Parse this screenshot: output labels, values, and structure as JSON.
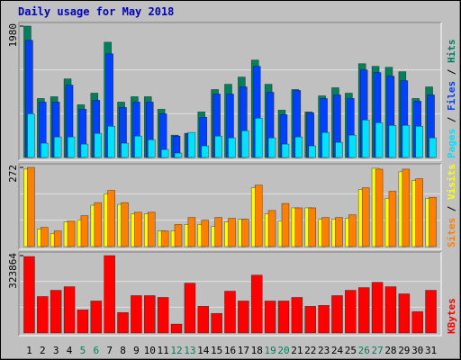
{
  "chart_data": [
    {
      "type": "bar",
      "title": "Daily usage for May 2018",
      "ylim": [
        0,
        1980
      ],
      "yticks": [
        1980
      ],
      "grid": true,
      "legend_position": "right",
      "legend_separator": " / ",
      "series": [
        {
          "name": "Hits",
          "color": "#00805c",
          "values": [
            1980,
            889,
            916,
            1185,
            795,
            970,
            1738,
            835,
            916,
            916,
            727,
            337,
            364,
            687,
            1024,
            1104,
            1212,
            1468,
            1104,
            714,
            1024,
            687,
            929,
            1051,
            970,
            1414,
            1374,
            1360,
            1293,
            889,
            1064
          ]
        },
        {
          "name": "Files",
          "color": "#0040ff",
          "values": [
            1765,
            835,
            835,
            1091,
            727,
            862,
            1562,
            754,
            835,
            835,
            660,
            323,
            364,
            606,
            956,
            956,
            1064,
            1374,
            983,
            647,
            1010,
            674,
            889,
            943,
            889,
            1320,
            1280,
            1226,
            1158,
            849,
            943
          ]
        },
        {
          "name": "Pages",
          "color": "#00e0ff",
          "values": [
            660,
            216,
            310,
            310,
            202,
            364,
            471,
            216,
            323,
            269,
            121,
            67,
            377,
            175,
            323,
            296,
            404,
            593,
            296,
            202,
            310,
            175,
            377,
            229,
            337,
            566,
            525,
            485,
            485,
            471,
            296
          ]
        }
      ]
    },
    {
      "type": "bar",
      "ylim": [
        0,
        272
      ],
      "yticks": [
        272
      ],
      "grid": true,
      "legend_position": "right",
      "legend_separator": " / ",
      "series": [
        {
          "name": "Visits",
          "color": "#ffff00",
          "values": [
            266,
            60,
            45,
            85,
            91,
            142,
            181,
            145,
            112,
            112,
            54,
            54,
            76,
            76,
            69,
            85,
            94,
            202,
            112,
            88,
            133,
            133,
            94,
            94,
            97,
            196,
            269,
            166,
            257,
            227,
            166
          ]
        },
        {
          "name": "Sites",
          "color": "#ff8000",
          "values": [
            272,
            66,
            54,
            88,
            106,
            151,
            193,
            151,
            118,
            118,
            54,
            76,
            100,
            91,
            100,
            97,
            94,
            211,
            124,
            148,
            133,
            133,
            100,
            100,
            109,
            202,
            266,
            190,
            266,
            233,
            169
          ]
        }
      ]
    },
    {
      "type": "bar",
      "ylim": [
        0,
        323864
      ],
      "yticks": [
        323864
      ],
      "grid": true,
      "legend_position": "right",
      "categories": [
        "1",
        "2",
        "3",
        "4",
        "5",
        "6",
        "7",
        "8",
        "9",
        "10",
        "11",
        "12",
        "13",
        "14",
        "15",
        "16",
        "17",
        "18",
        "19",
        "20",
        "21",
        "22",
        "23",
        "24",
        "25",
        "26",
        "27",
        "28",
        "29",
        "30",
        "31"
      ],
      "category_colors": [
        "#000000",
        "#000000",
        "#000000",
        "#000000",
        "#00805c",
        "#00805c",
        "#000000",
        "#000000",
        "#000000",
        "#000000",
        "#000000",
        "#00805c",
        "#00805c",
        "#000000",
        "#000000",
        "#000000",
        "#000000",
        "#000000",
        "#00805c",
        "#00805c",
        "#000000",
        "#000000",
        "#000000",
        "#000000",
        "#000000",
        "#00805c",
        "#00805c",
        "#000000",
        "#000000",
        "#000000",
        "#000000"
      ],
      "series": [
        {
          "name": "KBytes",
          "color": "#ff0000",
          "values": [
            320000,
            152600,
            178700,
            193600,
            96800,
            134000,
            323864,
            85600,
            156400,
            156400,
            148900,
            37200,
            208500,
            111700,
            81900,
            175000,
            134000,
            242000,
            134000,
            134000,
            148900,
            111700,
            115400,
            156400,
            178700,
            189900,
            212200,
            193600,
            163800,
            89400,
            178700
          ]
        }
      ]
    }
  ]
}
